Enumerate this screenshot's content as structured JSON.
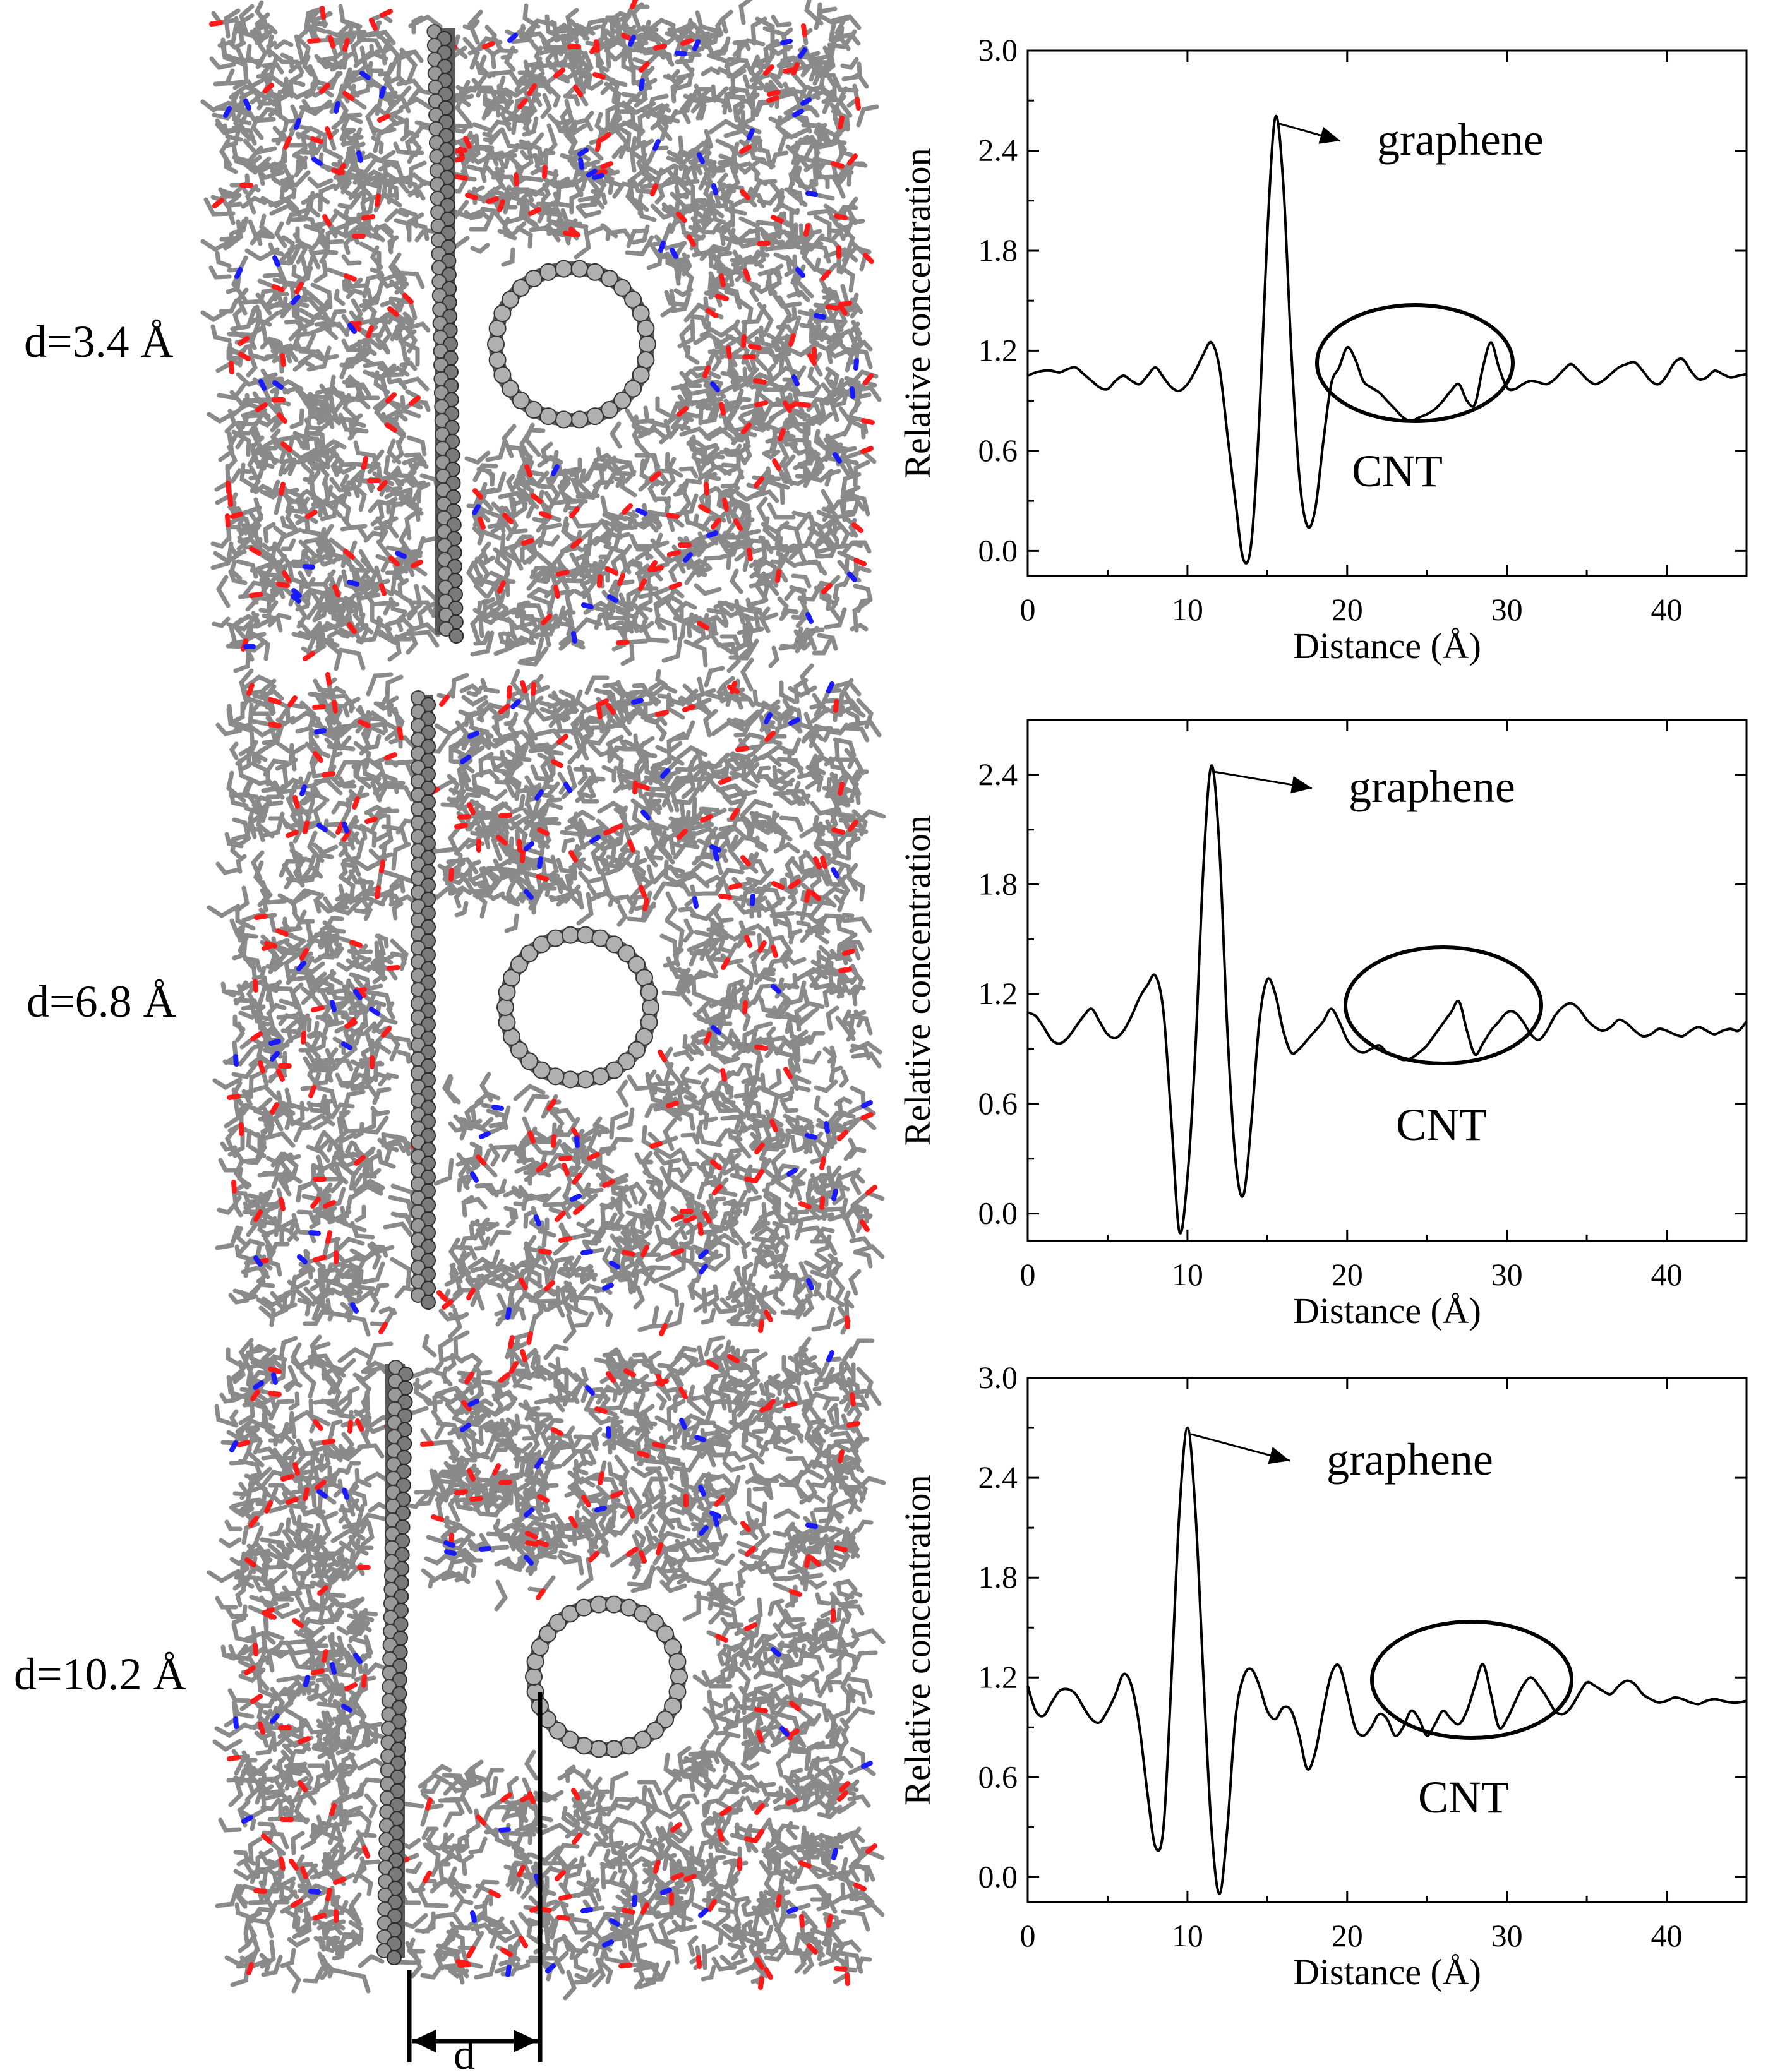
{
  "panel_labels": [
    "d=3.4 Å",
    "d=6.8 Å",
    "d=10.2 Å"
  ],
  "scale_label": "d",
  "colors": {
    "matrix": "#8a8a8a",
    "oxygen": "#ff1a1a",
    "nitrogen": "#1a1aff",
    "carbon": "#5a5a5a",
    "curve": "#000000"
  },
  "chart_data": [
    {
      "type": "line",
      "xlabel": "Distance (Å)",
      "ylabel": "Relative concentration",
      "xlim": [
        0,
        45
      ],
      "ylim": [
        -0.15,
        3.0
      ],
      "xticks": [
        "0",
        "10",
        "20",
        "30",
        "40"
      ],
      "yticks": [
        "0.0",
        "0.6",
        "1.2",
        "1.8",
        "2.4",
        "3.0"
      ],
      "annotations": [
        "graphene",
        "CNT"
      ],
      "x": [
        0.0,
        0.5,
        1.0,
        1.5,
        2.0,
        2.5,
        3.0,
        3.5,
        4.0,
        4.5,
        5.0,
        5.5,
        6.0,
        6.5,
        7.0,
        7.5,
        8.0,
        8.5,
        9.0,
        9.5,
        10.0,
        10.5,
        11.0,
        11.5,
        12.0,
        12.5,
        13.0,
        13.5,
        14.0,
        14.5,
        15.0,
        15.5,
        16.0,
        16.5,
        17.0,
        17.5,
        18.0,
        18.5,
        19.0,
        19.5,
        20.0,
        20.5,
        21.0,
        21.5,
        22.0,
        22.5,
        23.0,
        23.5,
        24.0,
        24.5,
        25.0,
        25.5,
        26.0,
        26.5,
        27.0,
        27.5,
        28.0,
        28.5,
        29.0,
        29.5,
        30.0,
        30.5,
        31.0,
        31.5,
        32.0,
        32.5,
        33.0,
        33.5,
        34.0,
        34.5,
        35.0,
        35.5,
        36.0,
        36.5,
        37.0,
        37.5,
        38.0,
        38.5,
        39.0,
        39.5,
        40.0,
        40.5,
        41.0,
        41.5,
        42.0,
        42.5,
        43.0,
        43.5,
        44.0,
        44.5,
        45.0
      ],
      "y": [
        1.05,
        1.07,
        1.08,
        1.08,
        1.07,
        1.09,
        1.1,
        1.06,
        1.02,
        0.98,
        0.97,
        1.02,
        1.05,
        1.02,
        1.0,
        1.05,
        1.1,
        1.04,
        0.98,
        0.96,
        1.0,
        1.08,
        1.18,
        1.25,
        1.1,
        0.7,
        0.3,
        -0.05,
        0.05,
        0.8,
        1.9,
        2.6,
        2.2,
        1.2,
        0.45,
        0.15,
        0.25,
        0.65,
        1.0,
        1.1,
        1.22,
        1.15,
        1.02,
        0.98,
        0.95,
        0.9,
        0.85,
        0.8,
        0.78,
        0.8,
        0.82,
        0.85,
        0.9,
        0.96,
        1.0,
        0.9,
        0.88,
        1.1,
        1.25,
        1.1,
        0.98,
        0.97,
        1.0,
        1.02,
        1.01,
        1.0,
        1.03,
        1.08,
        1.12,
        1.08,
        1.03,
        1.0,
        1.02,
        1.06,
        1.1,
        1.12,
        1.13,
        1.08,
        1.02,
        1.0,
        1.05,
        1.13,
        1.15,
        1.08,
        1.03,
        1.04,
        1.08,
        1.06,
        1.04,
        1.05,
        1.06
      ]
    },
    {
      "type": "line",
      "xlabel": "Distance (Å)",
      "ylabel": "Relative concentration",
      "xlim": [
        0,
        45
      ],
      "ylim": [
        -0.15,
        2.7
      ],
      "xticks": [
        "0",
        "10",
        "20",
        "30",
        "40"
      ],
      "yticks": [
        "0.0",
        "0.6",
        "1.2",
        "1.8",
        "2.4"
      ],
      "annotations": [
        "graphene",
        "CNT"
      ],
      "x": [
        0.0,
        0.5,
        1.0,
        1.5,
        2.0,
        2.5,
        3.0,
        3.5,
        4.0,
        4.5,
        5.0,
        5.5,
        6.0,
        6.5,
        7.0,
        7.5,
        8.0,
        8.5,
        9.0,
        9.5,
        10.0,
        10.5,
        11.0,
        11.5,
        12.0,
        12.5,
        13.0,
        13.5,
        14.0,
        14.5,
        15.0,
        15.5,
        16.0,
        16.5,
        17.0,
        17.5,
        18.0,
        18.5,
        19.0,
        19.5,
        20.0,
        20.5,
        21.0,
        21.5,
        22.0,
        22.5,
        23.0,
        23.5,
        24.0,
        24.5,
        25.0,
        25.5,
        26.0,
        26.5,
        27.0,
        27.5,
        28.0,
        28.5,
        29.0,
        29.5,
        30.0,
        30.5,
        31.0,
        31.5,
        32.0,
        32.5,
        33.0,
        33.5,
        34.0,
        34.5,
        35.0,
        35.5,
        36.0,
        36.5,
        37.0,
        37.5,
        38.0,
        38.5,
        39.0,
        39.5,
        40.0,
        40.5,
        41.0,
        41.5,
        42.0,
        42.5,
        43.0,
        43.5,
        44.0,
        44.5,
        45.0
      ],
      "y": [
        1.1,
        1.08,
        1.02,
        0.95,
        0.93,
        0.96,
        1.02,
        1.08,
        1.12,
        1.05,
        0.98,
        0.96,
        1.0,
        1.08,
        1.18,
        1.25,
        1.3,
        1.1,
        0.5,
        -0.1,
        0.2,
        0.9,
        1.9,
        2.45,
        2.0,
        1.0,
        0.3,
        0.1,
        0.5,
        1.05,
        1.28,
        1.2,
        1.0,
        0.88,
        0.9,
        0.95,
        1.0,
        1.05,
        1.12,
        1.05,
        0.95,
        0.9,
        0.88,
        0.9,
        0.92,
        0.88,
        0.86,
        0.84,
        0.85,
        0.88,
        0.92,
        0.98,
        1.04,
        1.1,
        1.16,
        1.0,
        0.87,
        0.93,
        1.0,
        1.05,
        1.1,
        1.1,
        1.05,
        0.98,
        0.95,
        1.0,
        1.08,
        1.13,
        1.15,
        1.12,
        1.06,
        1.02,
        1.0,
        1.02,
        1.06,
        1.04,
        1.0,
        0.97,
        0.98,
        1.01,
        1.0,
        0.98,
        0.97,
        1.0,
        1.02,
        1.0,
        0.98,
        1.0,
        1.01,
        1.0,
        1.05
      ]
    },
    {
      "type": "line",
      "xlabel": "Distance (Å)",
      "ylabel": "Relative concentration",
      "xlim": [
        0,
        45
      ],
      "ylim": [
        -0.15,
        3.0
      ],
      "xticks": [
        "0",
        "10",
        "20",
        "30",
        "40"
      ],
      "yticks": [
        "0.0",
        "0.6",
        "1.2",
        "1.8",
        "2.4",
        "3.0"
      ],
      "annotations": [
        "graphene",
        "CNT"
      ],
      "x": [
        0.0,
        0.5,
        1.0,
        1.5,
        2.0,
        2.5,
        3.0,
        3.5,
        4.0,
        4.5,
        5.0,
        5.5,
        6.0,
        6.5,
        7.0,
        7.5,
        8.0,
        8.5,
        9.0,
        9.5,
        10.0,
        10.5,
        11.0,
        11.5,
        12.0,
        12.5,
        13.0,
        13.5,
        14.0,
        14.5,
        15.0,
        15.5,
        16.0,
        16.5,
        17.0,
        17.5,
        18.0,
        18.5,
        19.0,
        19.5,
        20.0,
        20.5,
        21.0,
        21.5,
        22.0,
        22.5,
        23.0,
        23.5,
        24.0,
        24.5,
        25.0,
        25.5,
        26.0,
        26.5,
        27.0,
        27.5,
        28.0,
        28.5,
        29.0,
        29.5,
        30.0,
        30.5,
        31.0,
        31.5,
        32.0,
        32.5,
        33.0,
        33.5,
        34.0,
        34.5,
        35.0,
        35.5,
        36.0,
        36.5,
        37.0,
        37.5,
        38.0,
        38.5,
        39.0,
        39.5,
        40.0,
        40.5,
        41.0,
        41.5,
        42.0,
        42.5,
        43.0,
        43.5,
        44.0,
        44.5,
        45.0
      ],
      "y": [
        1.15,
        1.0,
        0.97,
        1.05,
        1.12,
        1.13,
        1.1,
        1.02,
        0.95,
        0.93,
        1.0,
        1.1,
        1.22,
        1.15,
        0.9,
        0.5,
        0.18,
        0.3,
        1.2,
        2.2,
        2.7,
        2.2,
        1.2,
        0.3,
        -0.1,
        0.3,
        0.95,
        1.2,
        1.25,
        1.15,
        1.0,
        0.95,
        1.02,
        1.0,
        0.85,
        0.65,
        0.75,
        1.0,
        1.22,
        1.27,
        1.1,
        0.9,
        0.85,
        0.9,
        0.98,
        0.95,
        0.85,
        0.9,
        1.0,
        0.95,
        0.85,
        0.92,
        1.0,
        0.95,
        0.92,
        1.0,
        1.15,
        1.28,
        1.1,
        0.9,
        0.95,
        1.05,
        1.15,
        1.2,
        1.15,
        1.08,
        1.0,
        0.98,
        1.02,
        1.1,
        1.17,
        1.15,
        1.12,
        1.1,
        1.15,
        1.18,
        1.16,
        1.1,
        1.07,
        1.05,
        1.06,
        1.08,
        1.07,
        1.05,
        1.04,
        1.06,
        1.07,
        1.06,
        1.05,
        1.05,
        1.06
      ]
    }
  ]
}
